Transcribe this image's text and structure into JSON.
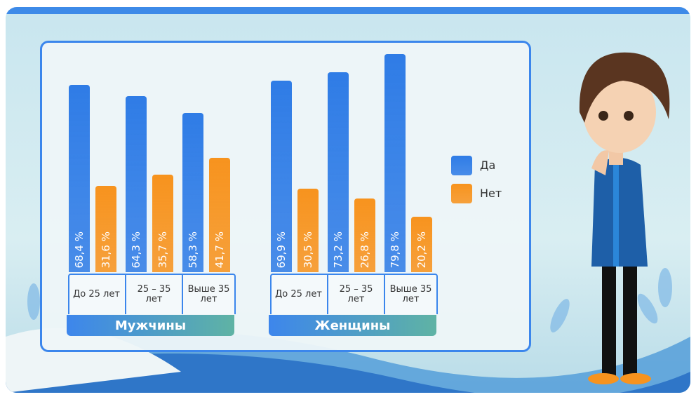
{
  "chart_data": [
    {
      "type": "bar",
      "title": "Мужчины",
      "categories": [
        "До 25 лет",
        "25 – 35 лет",
        "Выше 35 лет"
      ],
      "series": [
        {
          "name": "Да",
          "color": "#2f7ce6",
          "values": [
            68.4,
            64.3,
            58.3
          ],
          "value_labels": [
            "68,4 %",
            "64,3 %",
            "58,3 %"
          ]
        },
        {
          "name": "Нет",
          "color": "#f7931e",
          "values": [
            31.6,
            35.7,
            41.7
          ],
          "value_labels": [
            "31,6 %",
            "35,7 %",
            "41,7 %"
          ]
        }
      ]
    },
    {
      "type": "bar",
      "title": "Женщины",
      "categories": [
        "До 25 лет",
        "25 – 35 лет",
        "Выше 35 лет"
      ],
      "series": [
        {
          "name": "Да",
          "color": "#2f7ce6",
          "values": [
            69.9,
            73.2,
            79.8
          ],
          "value_labels": [
            "69,9 %",
            "73,2 %",
            "79,8 %"
          ]
        },
        {
          "name": "Нет",
          "color": "#f7931e",
          "values": [
            30.5,
            26.8,
            20.2
          ],
          "value_labels": [
            "30,5 %",
            "26,8 %",
            "20,2 %"
          ]
        }
      ]
    }
  ]
}
